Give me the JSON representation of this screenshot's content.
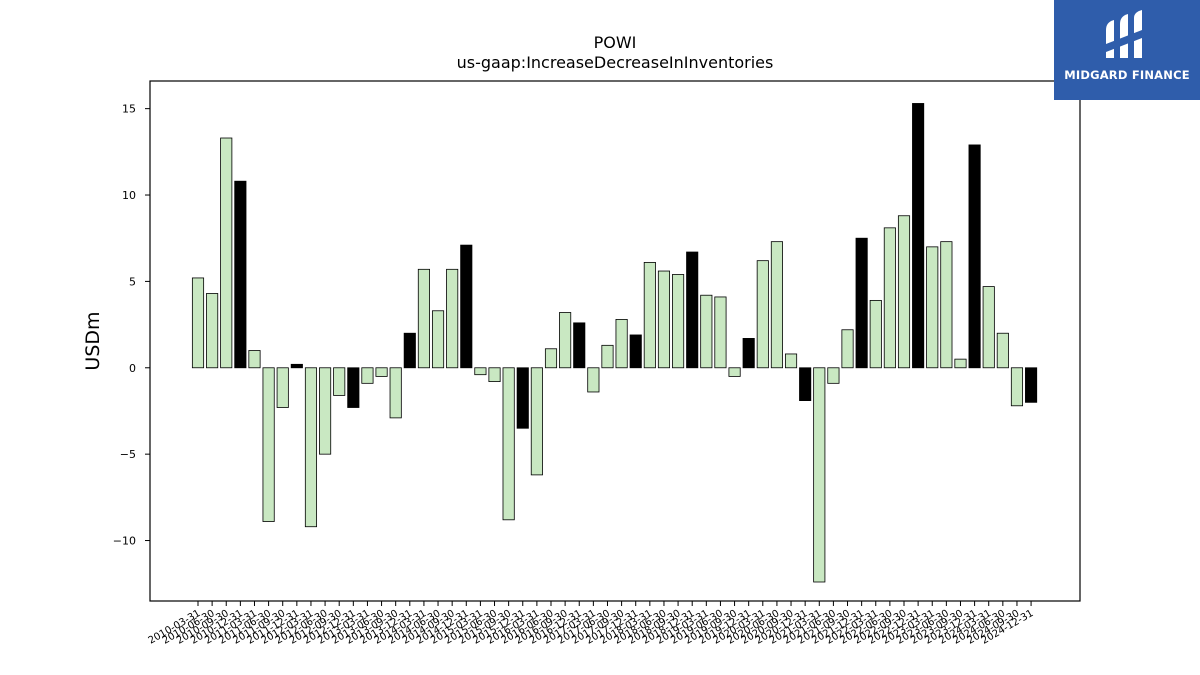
{
  "chart_data": {
    "type": "bar",
    "title": "POWI",
    "subtitle": "us-gaap:IncreaseDecreaseInInventories",
    "xlabel": "",
    "ylabel": "USDm",
    "ylim": [
      -13.5,
      16.6
    ],
    "yticks": [
      15,
      10,
      5,
      0,
      -5,
      -10
    ],
    "ytick_labels": [
      "15",
      "10",
      "5",
      "0",
      "−5",
      "−10"
    ],
    "grid": false,
    "colors": {
      "quarter": "#c9e8c2",
      "annual": "#000000",
      "edge": "#000000"
    },
    "categories": [
      "2010-03-31",
      "2010-06-30",
      "2010-09-30",
      "2010-12-31",
      "2011-03-31",
      "2011-06-30",
      "2011-09-30",
      "2011-12-31",
      "2012-03-31",
      "2012-06-30",
      "2012-09-30",
      "2012-12-31",
      "2013-03-31",
      "2013-06-30",
      "2013-09-30",
      "2013-12-31",
      "2014-03-31",
      "2014-06-30",
      "2014-09-30",
      "2014-12-31",
      "2015-03-31",
      "2015-06-30",
      "2015-09-30",
      "2015-12-31",
      "2016-03-31",
      "2016-06-30",
      "2016-09-30",
      "2016-12-31",
      "2017-03-31",
      "2017-06-30",
      "2017-09-30",
      "2017-12-31",
      "2018-03-31",
      "2018-06-30",
      "2018-09-30",
      "2018-12-31",
      "2019-03-31",
      "2019-06-30",
      "2019-09-30",
      "2019-12-31",
      "2020-03-31",
      "2020-06-30",
      "2020-09-30",
      "2020-12-31",
      "2021-03-31",
      "2021-06-30",
      "2021-09-30",
      "2021-12-31",
      "2022-03-31",
      "2022-06-30",
      "2022-09-30",
      "2022-12-31",
      "2023-03-31",
      "2023-06-30",
      "2023-09-30",
      "2023-12-31",
      "2024-03-31",
      "2024-06-30",
      "2024-09-30",
      "2024-12-31"
    ],
    "values": [
      5.2,
      4.3,
      13.3,
      10.8,
      1.0,
      -8.9,
      -2.3,
      0.2,
      -9.2,
      -5.0,
      -1.6,
      -2.3,
      -0.9,
      -0.5,
      -2.9,
      2.0,
      5.7,
      3.3,
      5.7,
      7.1,
      -0.4,
      -0.8,
      -8.8,
      -3.5,
      -6.2,
      1.1,
      3.2,
      2.6,
      -1.4,
      1.3,
      2.8,
      1.9,
      6.1,
      5.6,
      5.4,
      6.7,
      4.2,
      4.1,
      -0.5,
      1.7,
      6.2,
      7.3,
      0.8,
      -1.9,
      -12.4,
      -0.9,
      2.2,
      7.5,
      3.9,
      8.1,
      8.8,
      15.3,
      7.0,
      7.3,
      0.5,
      12.9,
      4.7,
      2.0,
      -2.2,
      -2.0
    ],
    "annual_flags": [
      0,
      0,
      0,
      1,
      0,
      0,
      0,
      1,
      0,
      0,
      0,
      1,
      0,
      0,
      0,
      1,
      0,
      0,
      0,
      1,
      0,
      0,
      0,
      1,
      0,
      0,
      0,
      1,
      0,
      0,
      0,
      1,
      0,
      0,
      0,
      1,
      0,
      0,
      0,
      1,
      0,
      0,
      0,
      1,
      0,
      0,
      0,
      1,
      0,
      0,
      0,
      1,
      0,
      0,
      0,
      1,
      0,
      0,
      0,
      1
    ]
  },
  "logo": {
    "text": "MIDGARD FINANCE"
  }
}
